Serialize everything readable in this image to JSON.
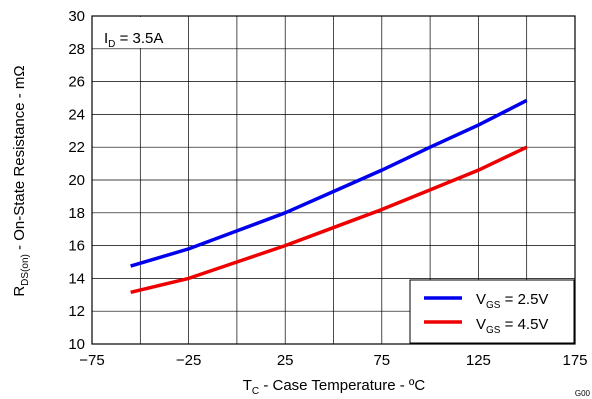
{
  "chart_data": {
    "type": "line",
    "xlabel": {
      "main": "T",
      "sub": "C",
      "rest": " - Case Temperature - ºC"
    },
    "ylabel": {
      "main": "R",
      "sub": "DS(on)",
      "rest": " - On-State Resistance - mΩ"
    },
    "xlim": [
      -75,
      175
    ],
    "ylim": [
      10,
      30
    ],
    "xticks": [
      -75,
      -25,
      25,
      75,
      125,
      175
    ],
    "xtick_labels": [
      "−75",
      "−25",
      "25",
      "75",
      "125",
      "175"
    ],
    "yticks": [
      10,
      12,
      14,
      16,
      18,
      20,
      22,
      24,
      26,
      28,
      30
    ],
    "xgrid_step": 25,
    "grid": true,
    "legend_position": "bottom-right",
    "annotation": {
      "main": "I",
      "sub": "D",
      "rest": " = 3.5A"
    },
    "figure_id": "G00",
    "series": [
      {
        "name": "VGS = 2.5V",
        "label": {
          "main": "V",
          "sub": "GS",
          "rest": " = 2.5V"
        },
        "color": "#0000ee",
        "x": [
          -55,
          -25,
          0,
          25,
          50,
          75,
          100,
          125,
          150
        ],
        "y": [
          14.75,
          15.8,
          16.9,
          18.0,
          19.3,
          20.6,
          22.0,
          23.35,
          24.85
        ]
      },
      {
        "name": "VGS = 4.5V",
        "label": {
          "main": "V",
          "sub": "GS",
          "rest": " = 4.5V"
        },
        "color": "#ee0000",
        "x": [
          -55,
          -25,
          0,
          25,
          50,
          75,
          100,
          125,
          150
        ],
        "y": [
          13.15,
          14.0,
          15.0,
          16.0,
          17.1,
          18.2,
          19.4,
          20.6,
          22.0
        ]
      }
    ]
  }
}
